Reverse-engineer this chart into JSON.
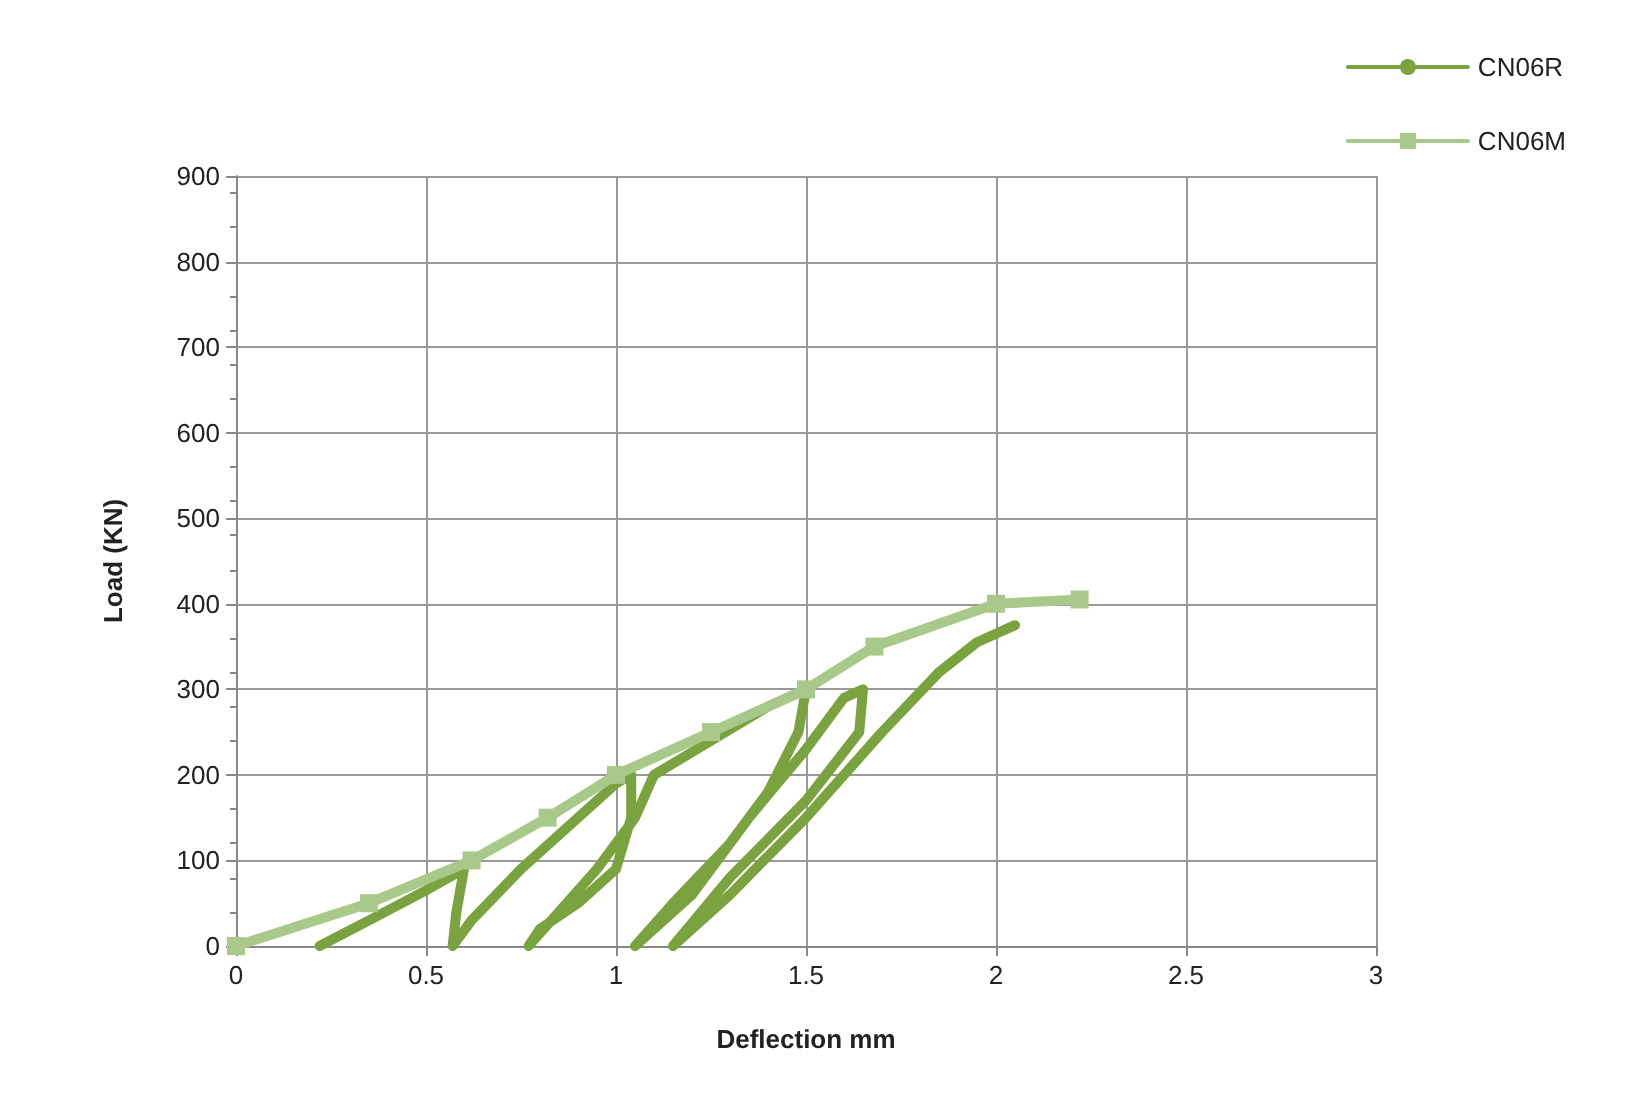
{
  "chart_data": {
    "type": "line",
    "xlabel": "Deflection mm",
    "ylabel": "Load (KN)",
    "xlim": [
      0,
      3
    ],
    "ylim": [
      0,
      900
    ],
    "xticks": [
      0,
      0.5,
      1,
      1.5,
      2,
      2.5,
      3
    ],
    "yticks": [
      0,
      100,
      200,
      300,
      400,
      500,
      600,
      700,
      800,
      900
    ],
    "grid": true,
    "legend": "top right",
    "series": [
      {
        "name": "CN06R",
        "color": "#7aa23e",
        "marker": "none",
        "x": [
          0.22,
          0.35,
          0.5,
          0.6,
          0.58,
          0.57,
          0.62,
          0.75,
          0.9,
          1.0,
          1.04,
          1.04,
          1.0,
          0.9,
          0.8,
          0.77,
          0.85,
          0.95,
          1.05,
          1.1,
          1.25,
          1.4,
          1.5,
          1.48,
          1.4,
          1.3,
          1.15,
          1.05,
          1.2,
          1.35,
          1.5,
          1.6,
          1.65,
          1.64,
          1.5,
          1.3,
          1.15,
          1.3,
          1.5,
          1.7,
          1.85,
          1.95,
          2.05
        ],
        "values": [
          0,
          30,
          65,
          90,
          40,
          0,
          30,
          90,
          150,
          190,
          200,
          150,
          90,
          50,
          20,
          0,
          40,
          90,
          150,
          200,
          240,
          280,
          300,
          250,
          180,
          120,
          50,
          0,
          60,
          150,
          230,
          290,
          300,
          250,
          170,
          80,
          0,
          60,
          150,
          250,
          320,
          355,
          375
        ]
      },
      {
        "name": "CN06M",
        "color": "#a9c98a",
        "marker": "square",
        "x": [
          0,
          0.35,
          0.62,
          0.82,
          1.0,
          1.25,
          1.5,
          1.68,
          2.0,
          2.22
        ],
        "values": [
          0,
          50,
          100,
          150,
          200,
          250,
          300,
          350,
          400,
          405
        ]
      }
    ]
  }
}
